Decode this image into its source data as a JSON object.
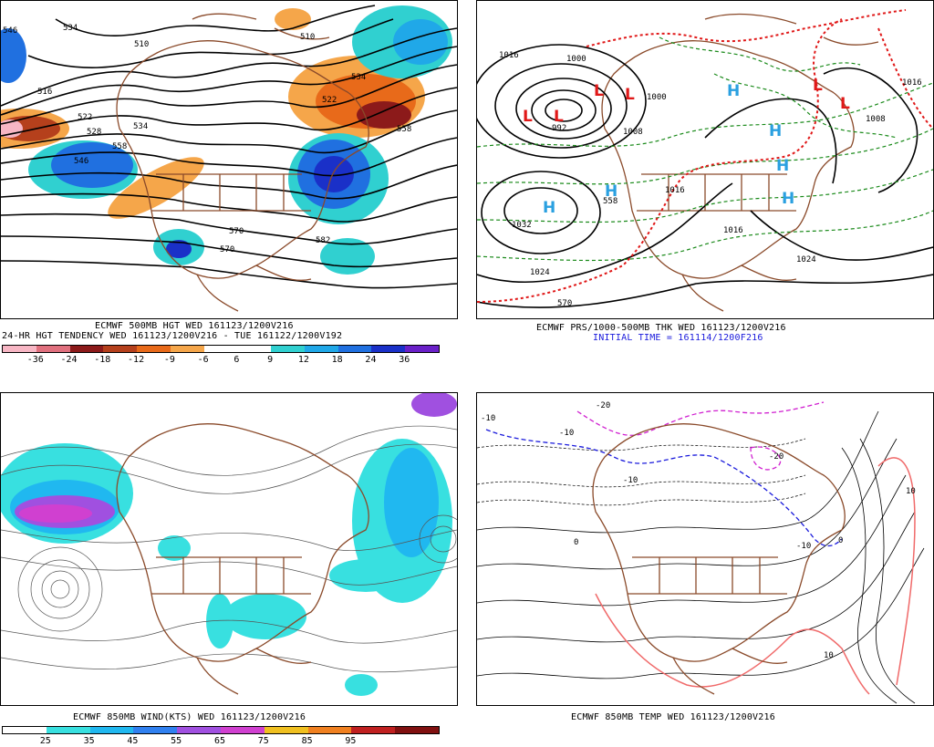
{
  "panels": {
    "p500": {
      "caption1": "ECMWF 500MB HGT WED 161123/1200V216",
      "caption2": "24-HR HGT TENDENCY WED 161123/1200V216 - TUE 161122/1200V192",
      "contour_labels": [
        "546",
        "534",
        "510",
        "516",
        "528",
        "522",
        "534",
        "546",
        "558",
        "510",
        "534",
        "522",
        "558",
        "582",
        "570",
        "570"
      ],
      "colorbar_colors": [
        "#f7b6c4",
        "#e0707e",
        "#8c1a1a",
        "#b5401c",
        "#e86a1a",
        "#f5a64a",
        "#ffffff",
        "#ffffff",
        "#30d0d0",
        "#20a8e8",
        "#2070e0",
        "#1a30c8",
        "#6a20c8"
      ],
      "colorbar_labels": [
        "-36",
        "-24",
        "-18",
        "-12",
        "-9",
        "-6",
        "6",
        "9",
        "12",
        "18",
        "24",
        "36"
      ]
    },
    "psl": {
      "caption1": "ECMWF PRS/1000-500MB THK WED 161123/1200V216",
      "caption2": "INITIAL TIME = 161114/1200F216",
      "contour_labels": [
        "1016",
        "1000",
        "992",
        "1008",
        "1000",
        "1016",
        "1032",
        "1024",
        "1016",
        "1024",
        "1016",
        "1008",
        "570",
        "558"
      ],
      "centers": [
        {
          "type": "L",
          "color": "#e01818"
        },
        {
          "type": "L",
          "color": "#e01818"
        },
        {
          "type": "L",
          "color": "#e01818"
        },
        {
          "type": "L",
          "color": "#e01818"
        },
        {
          "type": "L",
          "color": "#e01818"
        },
        {
          "type": "L",
          "color": "#e01818"
        },
        {
          "type": "H",
          "color": "#2aa0e0"
        },
        {
          "type": "H",
          "color": "#2aa0e0"
        },
        {
          "type": "H",
          "color": "#2aa0e0"
        },
        {
          "type": "H",
          "color": "#2aa0e0"
        },
        {
          "type": "H",
          "color": "#2aa0e0"
        },
        {
          "type": "H",
          "color": "#2aa0e0"
        }
      ]
    },
    "wind": {
      "caption1": "ECMWF 850MB WIND(KTS) WED 161123/1200V216",
      "colorbar_colors": [
        "#ffffff",
        "#38e0e0",
        "#20b8f0",
        "#3080f0",
        "#a050e0",
        "#d040d0",
        "#f0c020",
        "#f08020",
        "#c02020",
        "#801010"
      ],
      "colorbar_labels": [
        "25",
        "35",
        "45",
        "55",
        "65",
        "75",
        "85",
        "95"
      ]
    },
    "temp": {
      "caption1": "ECMWF 850MB TEMP WED 161123/1200V216",
      "contour_labels": [
        "-20",
        "-10",
        "-10",
        "-10",
        "0",
        "10",
        "10",
        "-20",
        "0",
        "-10"
      ]
    }
  }
}
